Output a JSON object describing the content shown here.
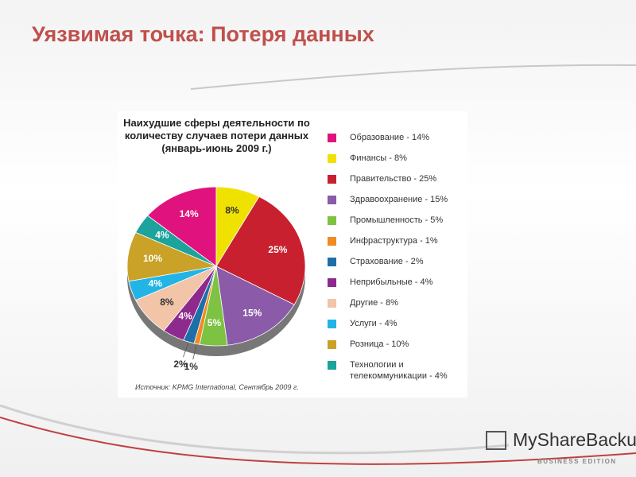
{
  "slide_title": "Уязвимая точка: Потеря данных",
  "chart_data": {
    "type": "pie",
    "title": "Наихудшие сферы деятельности по количеству случаев потери данных (январь-июнь 2009 г.)",
    "categories": [
      "Образование - 14%",
      "Финансы - 8%",
      "Правительство - 25%",
      "Здравоохранение - 15%",
      "Промышленность - 5%",
      "Инфраструктура - 1%",
      "Страхование - 2%",
      "Неприбыльные - 4%",
      "Другие - 8%",
      "Услуги - 4%",
      "Розница - 10%",
      "Технологии и телекоммуникации - 4%"
    ],
    "values": [
      14,
      8,
      25,
      15,
      5,
      1,
      2,
      4,
      8,
      4,
      10,
      4
    ],
    "value_labels": [
      "14%",
      "8%",
      "25%",
      "15%",
      "5%",
      "1%",
      "2%",
      "4%",
      "8%",
      "4%",
      "10%",
      "4%"
    ],
    "colors": [
      "#e0137e",
      "#f0e200",
      "#c8202f",
      "#8b5aa8",
      "#7dc242",
      "#f08a24",
      "#1e6fa8",
      "#8e2a8e",
      "#f2c4a8",
      "#22b4e4",
      "#c9a227",
      "#1ba39c"
    ],
    "source": "Источник: KPMG International, Сентябрь 2009 г."
  },
  "logo": {
    "name": "MyShareBackup",
    "edition": "BUSINESS EDITION"
  }
}
